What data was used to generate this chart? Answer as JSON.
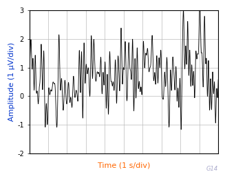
{
  "xlabel": "Time (1 s/div)",
  "ylabel": "Amplitude (1 μV/div)",
  "xlabel_color": "#FF6600",
  "ylabel_color": "#0033CC",
  "xlim": [
    0,
    10
  ],
  "ylim": [
    -2,
    3
  ],
  "yticks": [
    -2,
    -1,
    0,
    1,
    2,
    3
  ],
  "xticks": [
    0,
    1,
    2,
    3,
    4,
    5,
    6,
    7,
    8,
    9,
    10
  ],
  "grid_color": "#BBBBBB",
  "line_color": "#000000",
  "background_color": "#FFFFFF",
  "seed": 12345,
  "n_points": 3000,
  "watermark": "G14",
  "watermark_color": "#AAAACC",
  "xlabel_fontsize": 8,
  "ylabel_fontsize": 8,
  "tick_fontsize": 7,
  "watermark_fontsize": 6
}
